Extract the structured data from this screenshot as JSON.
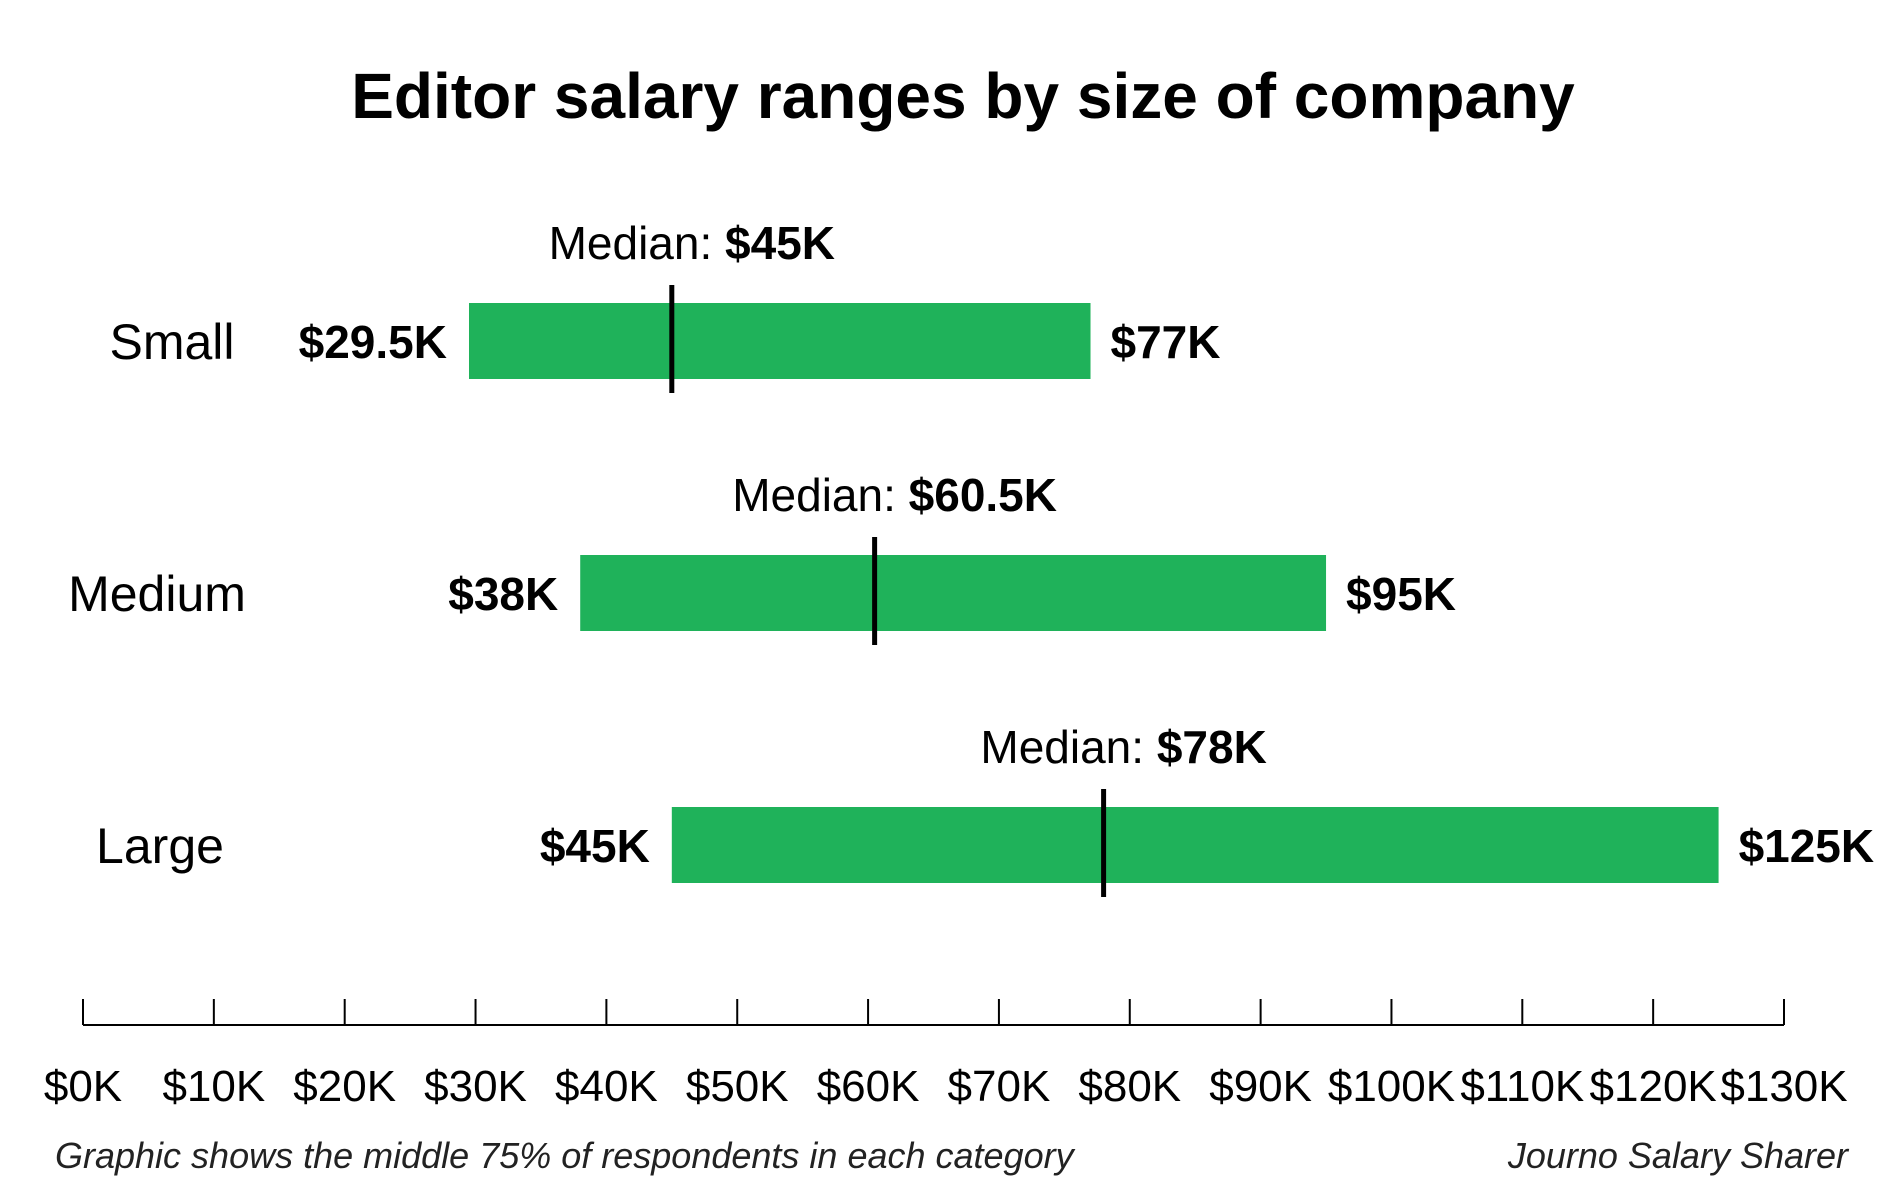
{
  "chart_data": {
    "type": "bar",
    "orientation": "horizontal-range",
    "title": "Editor salary ranges by size of company",
    "xlim": [
      0,
      130
    ],
    "x_unit": "K",
    "ticks": [
      0,
      10,
      20,
      30,
      40,
      50,
      60,
      70,
      80,
      90,
      100,
      110,
      120,
      130
    ],
    "tick_labels": [
      "$0K",
      "$10K",
      "$20K",
      "$30K",
      "$40K",
      "$50K",
      "$60K",
      "$70K",
      "$80K",
      "$90K",
      "$100K",
      "$110K",
      "$120K",
      "$130K"
    ],
    "median_prefix": "Median: ",
    "categories": [
      {
        "label": "Small",
        "low": 29.5,
        "high": 77,
        "median": 45,
        "low_label": "$29.5K",
        "high_label": "$77K",
        "median_label": "$45K"
      },
      {
        "label": "Medium",
        "low": 38,
        "high": 95,
        "median": 60.5,
        "low_label": "$38K",
        "high_label": "$95K",
        "median_label": "$60.5K"
      },
      {
        "label": "Large",
        "low": 45,
        "high": 125,
        "median": 78,
        "low_label": "$45K",
        "high_label": "$125K",
        "median_label": "$78K"
      }
    ],
    "bar_color": "#1fb25a",
    "median_color": "#000000",
    "footnote": "Graphic shows the middle 75% of respondents in each category",
    "source": "Journo Salary Sharer"
  }
}
